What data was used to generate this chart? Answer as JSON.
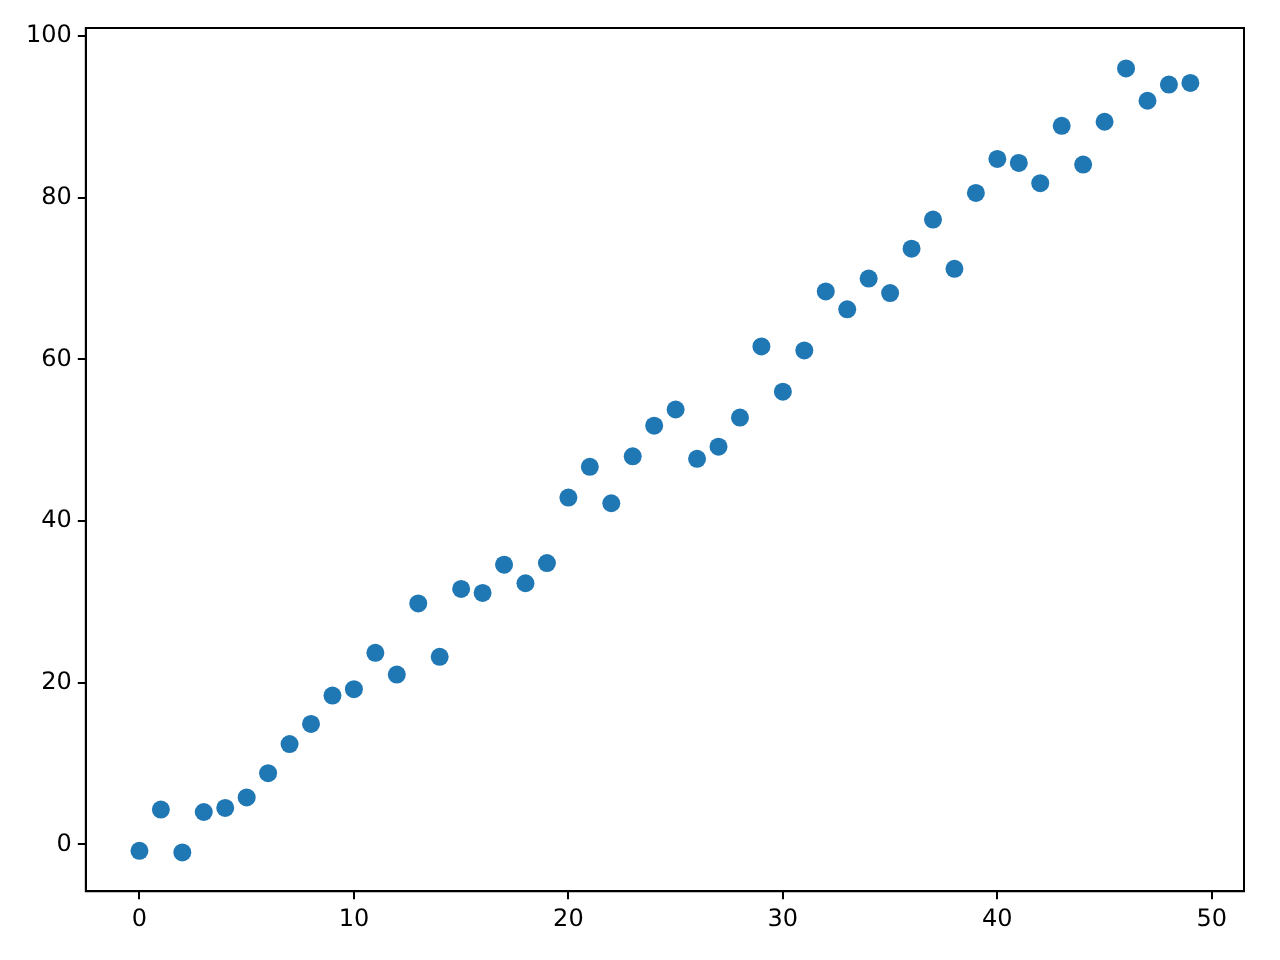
{
  "chart_data": {
    "type": "scatter",
    "x": [
      0,
      1,
      2,
      3,
      4,
      5,
      6,
      7,
      8,
      9,
      10,
      11,
      12,
      13,
      14,
      15,
      16,
      17,
      18,
      19,
      20,
      21,
      22,
      23,
      24,
      25,
      26,
      27,
      28,
      29,
      30,
      31,
      32,
      33,
      34,
      35,
      36,
      37,
      38,
      39,
      40,
      41,
      42,
      43,
      44,
      45,
      46,
      47,
      48,
      49
    ],
    "series": [
      {
        "color": "#1f77b4",
        "values": [
          -0.8,
          4.3,
          -1,
          4,
          4.5,
          5.8,
          8.8,
          12.4,
          14.9,
          18.4,
          19.2,
          23.7,
          21,
          29.8,
          23.2,
          31.6,
          31.1,
          34.6,
          32.3,
          34.8,
          42.9,
          46.7,
          42.2,
          48,
          51.8,
          53.8,
          47.7,
          49.2,
          52.8,
          61.6,
          56,
          61.1,
          68.4,
          66.2,
          70,
          68.2,
          73.7,
          77.3,
          71.2,
          80.6,
          84.8,
          84.3,
          81.8,
          88.9,
          84.1,
          89.4,
          96,
          92,
          94,
          94.2
        ]
      }
    ],
    "marker": "circle",
    "xlim": [
      -2.5,
      51.5
    ],
    "ylim": [
      -5.8,
      101
    ],
    "xticks": [
      0,
      10,
      20,
      30,
      40,
      50
    ],
    "yticks": [
      0,
      20,
      40,
      60,
      80,
      100
    ],
    "grid": false,
    "legend": false
  }
}
